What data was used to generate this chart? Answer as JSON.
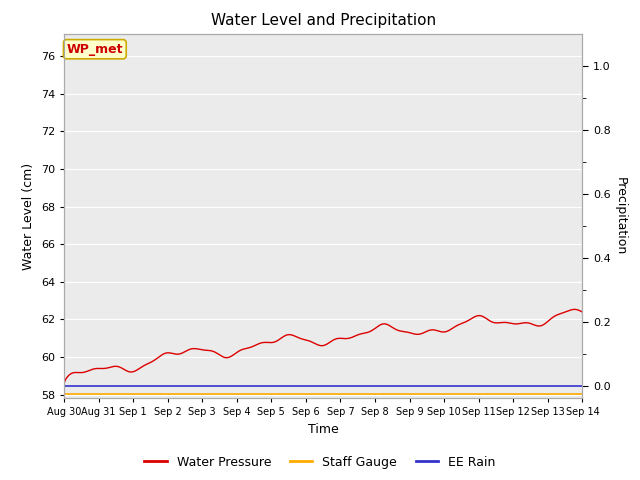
{
  "title": "Water Level and Precipitation",
  "xlabel": "Time",
  "ylabel_left": "Water Level (cm)",
  "ylabel_right": "Precipitation",
  "annotation_text": "WP_met",
  "annotation_bg": "#ffffcc",
  "annotation_border": "#ccaa00",
  "annotation_text_color": "#cc0000",
  "ylim_left": [
    57.8,
    77.2
  ],
  "ylim_right": [
    -0.04,
    1.1
  ],
  "yticks_left": [
    58,
    60,
    62,
    64,
    66,
    68,
    70,
    72,
    74,
    76
  ],
  "yticks_right_major": [
    0.0,
    0.2,
    0.4,
    0.6,
    0.8,
    1.0
  ],
  "yticks_right_minor": [
    0.1,
    0.3,
    0.5,
    0.7,
    0.9
  ],
  "x_tick_labels": [
    "Aug 30",
    "Aug 31",
    "Sep 1",
    "Sep 2",
    "Sep 3",
    "Sep 4",
    "Sep 5",
    "Sep 6",
    "Sep 7",
    "Sep 8",
    "Sep 9",
    "Sep 10",
    "Sep 11",
    "Sep 12",
    "Sep 13",
    "Sep 14"
  ],
  "water_pressure_color": "#dd0000",
  "staff_gauge_color": "#ffaa00",
  "ee_rain_color": "#3333cc",
  "bg_color": "#ebebeb",
  "grid_color": "#ffffff",
  "legend_labels": [
    "Water Pressure",
    "Staff Gauge",
    "EE Rain"
  ],
  "legend_colors": [
    "#dd0000",
    "#ffaa00",
    "#3333cc"
  ]
}
